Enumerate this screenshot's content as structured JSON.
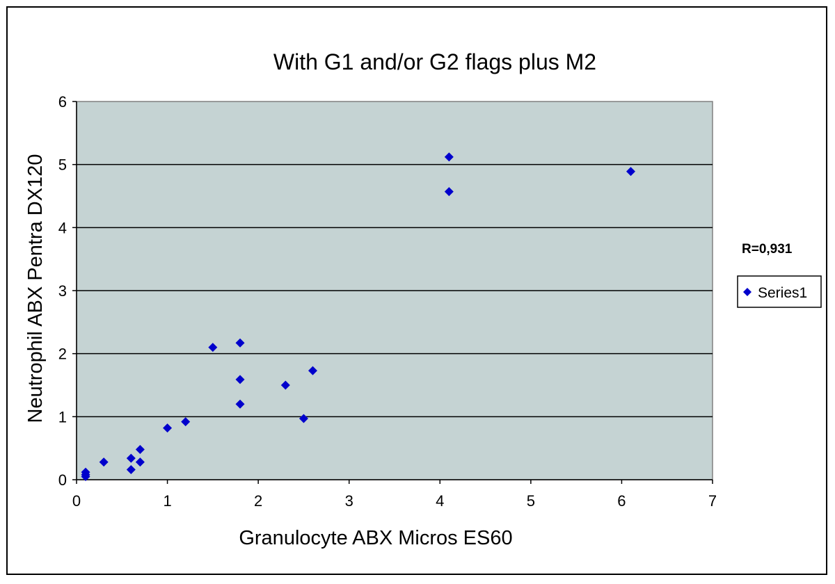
{
  "chart_data": {
    "type": "scatter",
    "title": "With G1 and/or G2 flags plus M2",
    "xlabel": "Granulocyte ABX Micros ES60",
    "ylabel": "Neutrophil ABX Pentra DX120",
    "xlim": [
      0,
      7
    ],
    "ylim": [
      0,
      6
    ],
    "xticks": [
      "0",
      "1",
      "2",
      "3",
      "4",
      "5",
      "6",
      "7"
    ],
    "yticks": [
      "0",
      "1",
      "2",
      "3",
      "4",
      "5",
      "6"
    ],
    "grid": "horizontal",
    "legend_placement": "right",
    "annotation": "R=0,931",
    "series": [
      {
        "name": "Series1",
        "color": "#0000cc",
        "marker": "diamond",
        "points": [
          {
            "x": 0.1,
            "y": 0.05
          },
          {
            "x": 0.1,
            "y": 0.08
          },
          {
            "x": 0.1,
            "y": 0.12
          },
          {
            "x": 0.3,
            "y": 0.28
          },
          {
            "x": 0.6,
            "y": 0.16
          },
          {
            "x": 0.6,
            "y": 0.34
          },
          {
            "x": 0.7,
            "y": 0.28
          },
          {
            "x": 0.7,
            "y": 0.48
          },
          {
            "x": 1.0,
            "y": 0.82
          },
          {
            "x": 1.2,
            "y": 0.92
          },
          {
            "x": 1.5,
            "y": 2.1
          },
          {
            "x": 1.8,
            "y": 2.17
          },
          {
            "x": 1.8,
            "y": 1.59
          },
          {
            "x": 1.8,
            "y": 1.2
          },
          {
            "x": 2.3,
            "y": 1.5
          },
          {
            "x": 2.5,
            "y": 0.97
          },
          {
            "x": 2.6,
            "y": 1.73
          },
          {
            "x": 4.1,
            "y": 5.12
          },
          {
            "x": 4.1,
            "y": 4.57
          },
          {
            "x": 6.1,
            "y": 4.89
          }
        ]
      }
    ]
  },
  "colors": {
    "plot_background": "#c5d3d3",
    "marker": "#0000cc",
    "gridline": "#000000"
  }
}
